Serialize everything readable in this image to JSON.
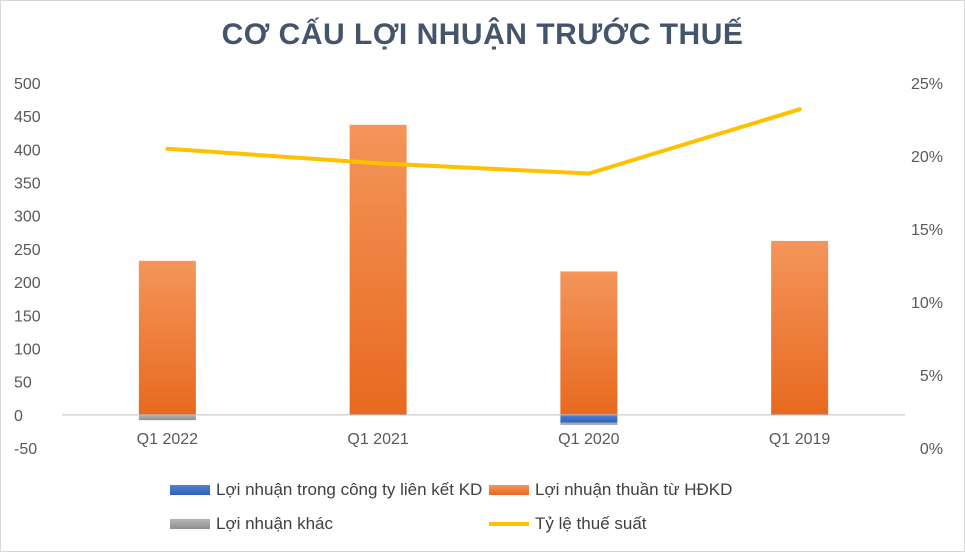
{
  "chart_data": {
    "type": "bar",
    "title": "CƠ CẤU LỢI NHUẬN TRƯỚC THUẾ",
    "categories": [
      "Q1 2022",
      "Q1 2021",
      "Q1 2020",
      "Q1 2019"
    ],
    "series": [
      {
        "name": "Lợi nhuận trong công ty liên kết KD",
        "type": "bar",
        "axis": "left",
        "color": "#4472c4",
        "values": [
          0,
          0,
          -12,
          0
        ]
      },
      {
        "name": "Lợi nhuận thuần từ HĐKD",
        "type": "bar",
        "axis": "left",
        "color": "#ed7d31",
        "values": [
          232,
          437,
          216,
          262
        ]
      },
      {
        "name": "Lợi nhuận khác",
        "type": "bar",
        "axis": "left",
        "color": "#a5a5a5",
        "values": [
          -8,
          0,
          -3,
          0
        ]
      },
      {
        "name": "Tỷ lệ thuế suất",
        "type": "line",
        "axis": "right",
        "color": "#ffc000",
        "values": [
          0.205,
          0.195,
          0.188,
          0.232
        ]
      }
    ],
    "y_left": {
      "min": -50,
      "max": 500,
      "ticks": [
        "500",
        "450",
        "400",
        "350",
        "300",
        "250",
        "200",
        "150",
        "100",
        "50",
        "0",
        "-50"
      ]
    },
    "y_right": {
      "min": 0,
      "max": 0.25,
      "ticks": [
        "25%",
        "20%",
        "15%",
        "10%",
        "5%",
        "0%"
      ]
    },
    "legend_position": "bottom",
    "grid": false
  }
}
